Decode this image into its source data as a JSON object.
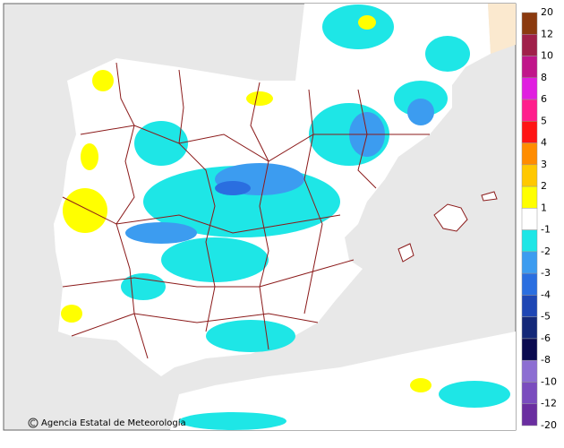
{
  "map": {
    "credit": "Agencia Estatal de Meteorología",
    "legend": {
      "labels": [
        20,
        12,
        10,
        8,
        6,
        5,
        4,
        3,
        2,
        1,
        -1,
        -2,
        -3,
        -4,
        -5,
        -6,
        -8,
        -10,
        -12,
        -20
      ],
      "colors": [
        "#8b3a0f",
        "#a0204a",
        "#c0158a",
        "#e01ee0",
        "#ff1e8c",
        "#ff1414",
        "#ff8c00",
        "#ffc800",
        "#ffff00",
        "#ffffff",
        "#1ee6e6",
        "#3c9cf0",
        "#2a6ee0",
        "#1e46b4",
        "#142878",
        "#0a0a50",
        "#8c6ed2",
        "#7a4cbe",
        "#6a2ea0"
      ]
    }
  }
}
